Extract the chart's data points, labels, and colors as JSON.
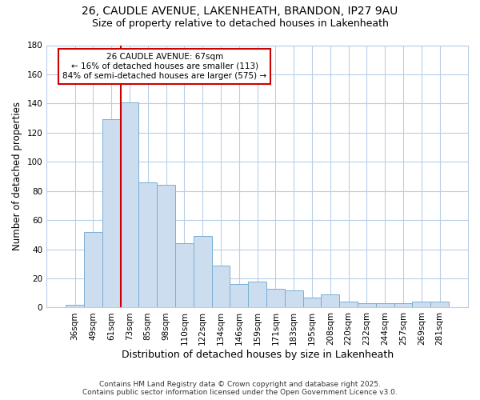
{
  "title1": "26, CAUDLE AVENUE, LAKENHEATH, BRANDON, IP27 9AU",
  "title2": "Size of property relative to detached houses in Lakenheath",
  "xlabel": "Distribution of detached houses by size in Lakenheath",
  "ylabel": "Number of detached properties",
  "categories": [
    "36sqm",
    "49sqm",
    "61sqm",
    "73sqm",
    "85sqm",
    "98sqm",
    "110sqm",
    "122sqm",
    "134sqm",
    "146sqm",
    "159sqm",
    "171sqm",
    "183sqm",
    "195sqm",
    "208sqm",
    "220sqm",
    "232sqm",
    "244sqm",
    "257sqm",
    "269sqm",
    "281sqm"
  ],
  "values": [
    2,
    52,
    129,
    141,
    86,
    84,
    44,
    49,
    29,
    16,
    18,
    13,
    12,
    7,
    9,
    4,
    3,
    3,
    3,
    4,
    4
  ],
  "bar_color": "#ccddf0",
  "bar_edge_color": "#7bafd4",
  "bar_edge_width": 0.7,
  "redline_x": 2.5,
  "annotation_line1": "26 CAUDLE AVENUE: 67sqm",
  "annotation_line2": "← 16% of detached houses are smaller (113)",
  "annotation_line3": "84% of semi-detached houses are larger (575) →",
  "annotation_box_color": "#ffffff",
  "annotation_box_edge": "#cc0000",
  "redline_color": "#cc0000",
  "grid_color": "#b8cfe8",
  "background_color": "#ffffff",
  "plot_background": "#ffffff",
  "ylim": [
    0,
    180
  ],
  "yticks": [
    0,
    20,
    40,
    60,
    80,
    100,
    120,
    140,
    160,
    180
  ],
  "footer1": "Contains HM Land Registry data © Crown copyright and database right 2025.",
  "footer2": "Contains public sector information licensed under the Open Government Licence v3.0."
}
